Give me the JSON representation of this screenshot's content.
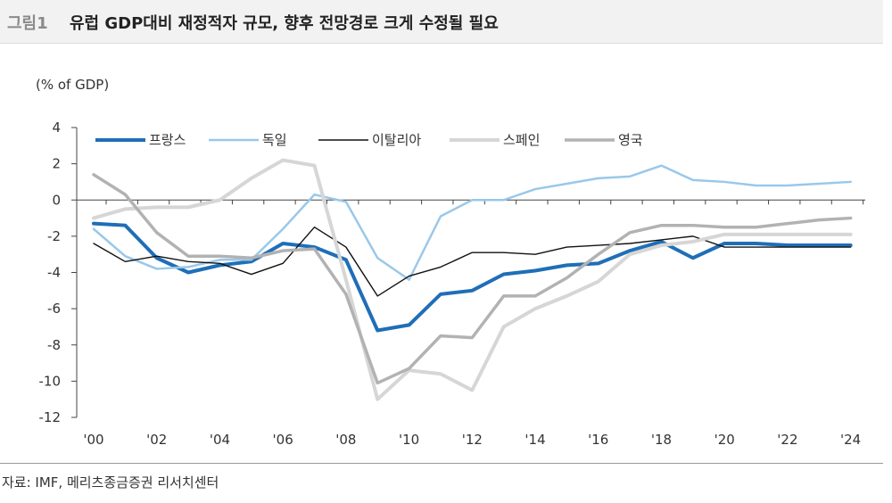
{
  "header": {
    "figure_label": "그림1",
    "title": "유럽 GDP대비 재정적자 규모, 향후 전망경로 크게 수정될 필요"
  },
  "chart_unit": "(% of GDP)",
  "source": "자료: IMF, 메리츠종금증권 리서치센터",
  "chart_data": {
    "type": "line",
    "title": "유럽 GDP대비 재정적자 규모, 향후 전망경로 크게 수정될 필요",
    "ylabel": "(% of GDP)",
    "xlabel": "",
    "x": [
      2000,
      2001,
      2002,
      2003,
      2004,
      2005,
      2006,
      2007,
      2008,
      2009,
      2010,
      2011,
      2012,
      2013,
      2014,
      2015,
      2016,
      2017,
      2018,
      2019,
      2020,
      2021,
      2022,
      2023,
      2024
    ],
    "xticks": [
      2000,
      2002,
      2004,
      2006,
      2008,
      2010,
      2012,
      2014,
      2016,
      2018,
      2020,
      2022,
      2024
    ],
    "xtick_labels": [
      "'00",
      "'02",
      "'04",
      "'06",
      "'08",
      "'10",
      "'12",
      "'14",
      "'16",
      "'18",
      "'20",
      "'22",
      "'24"
    ],
    "yticks": [
      4,
      2,
      0,
      -2,
      -4,
      -6,
      -8,
      -10,
      -12
    ],
    "ytick_labels": [
      "4",
      "2",
      "0",
      "-2",
      "-4",
      "-6",
      "-8",
      "-10",
      "-12"
    ],
    "ylim": [
      -12,
      4
    ],
    "legend_position": "top",
    "series": [
      {
        "name": "프랑스",
        "color": "#1f6eb8",
        "width": 4,
        "values": [
          -1.3,
          -1.4,
          -3.2,
          -4.0,
          -3.6,
          -3.4,
          -2.4,
          -2.6,
          -3.3,
          -7.2,
          -6.9,
          -5.2,
          -5.0,
          -4.1,
          -3.9,
          -3.6,
          -3.5,
          -2.8,
          -2.3,
          -3.2,
          -2.4,
          -2.4,
          -2.5,
          -2.5,
          -2.5
        ]
      },
      {
        "name": "독일",
        "color": "#99c8ea",
        "width": 2.5,
        "values": [
          -1.6,
          -3.1,
          -3.8,
          -3.7,
          -3.3,
          -3.3,
          -1.6,
          0.3,
          -0.1,
          -3.2,
          -4.4,
          -0.9,
          0.0,
          0.0,
          0.6,
          0.9,
          1.2,
          1.3,
          1.9,
          1.1,
          1.0,
          0.8,
          0.8,
          0.9,
          1.0
        ]
      },
      {
        "name": "이탈리아",
        "color": "#111111",
        "width": 1.4,
        "values": [
          -2.4,
          -3.4,
          -3.1,
          -3.4,
          -3.5,
          -4.1,
          -3.5,
          -1.5,
          -2.6,
          -5.3,
          -4.2,
          -3.7,
          -2.9,
          -2.9,
          -3.0,
          -2.6,
          -2.5,
          -2.4,
          -2.2,
          -2.0,
          -2.6,
          -2.6,
          -2.6,
          -2.6,
          -2.6
        ]
      },
      {
        "name": "스페인",
        "color": "#d6d6d6",
        "width": 4,
        "values": [
          -1.0,
          -0.5,
          -0.4,
          -0.4,
          0.0,
          1.2,
          2.2,
          1.9,
          -4.4,
          -11.0,
          -9.4,
          -9.6,
          -10.5,
          -7.0,
          -6.0,
          -5.3,
          -4.5,
          -3.0,
          -2.5,
          -2.3,
          -1.9,
          -1.9,
          -1.9,
          -1.9,
          -1.9
        ]
      },
      {
        "name": "영국",
        "color": "#b2b2b2",
        "width": 3.5,
        "values": [
          1.4,
          0.3,
          -1.8,
          -3.1,
          -3.1,
          -3.2,
          -2.8,
          -2.7,
          -5.2,
          -10.1,
          -9.3,
          -7.5,
          -7.6,
          -5.3,
          -5.3,
          -4.3,
          -3.0,
          -1.8,
          -1.4,
          -1.4,
          -1.5,
          -1.5,
          -1.3,
          -1.1,
          -1.0
        ]
      }
    ]
  }
}
